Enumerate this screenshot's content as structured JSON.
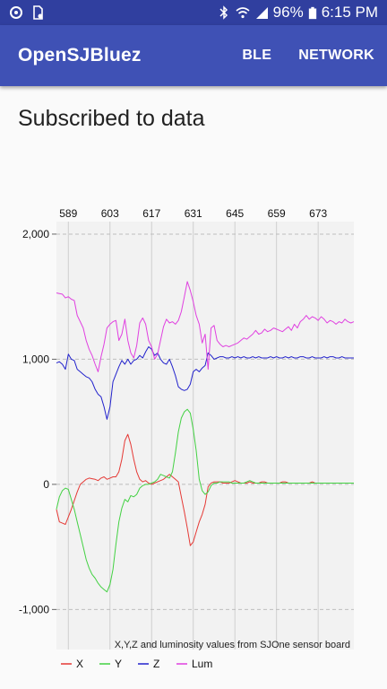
{
  "status_bar": {
    "left_icons": [
      "sync-icon",
      "sd-card-icon"
    ],
    "right_icons": [
      "bluetooth-icon",
      "wifi-icon",
      "signal-icon",
      "battery-icon"
    ],
    "battery": "96%",
    "time": "6:15 PM"
  },
  "app_bar": {
    "title": "OpenSJBluez",
    "actions": [
      "BLE",
      "NETWORK"
    ]
  },
  "main": {
    "heading": "Subscribed to data"
  },
  "colors": {
    "X": "#e53935",
    "Y": "#43d143",
    "Z": "#2222cc",
    "Lum": "#e040e0",
    "primary": "#3f51b5",
    "status": "#303f9f"
  },
  "chart_data": {
    "type": "line",
    "title": "",
    "description": "X,Y,Z and luminosity values from SJOne sensor board",
    "xlabel": "",
    "ylabel": "",
    "x_ticks": [
      589,
      603,
      617,
      631,
      645,
      659,
      673
    ],
    "xlim": [
      585,
      685
    ],
    "y_ticks": [
      -1000,
      0,
      1000,
      2000
    ],
    "y_tick_labels": [
      "-1,000",
      "0",
      "1,000",
      "2,000"
    ],
    "ylim": [
      -1320,
      2100
    ],
    "grid": true,
    "legend": "bottom-left",
    "x": [
      585,
      586,
      587,
      588,
      589,
      590,
      591,
      592,
      593,
      594,
      595,
      596,
      597,
      598,
      599,
      600,
      601,
      602,
      603,
      604,
      605,
      606,
      607,
      608,
      609,
      610,
      611,
      612,
      613,
      614,
      615,
      616,
      617,
      618,
      619,
      620,
      621,
      622,
      623,
      624,
      625,
      626,
      627,
      628,
      629,
      630,
      631,
      632,
      633,
      634,
      635,
      636,
      637,
      638,
      639,
      640,
      641,
      642,
      643,
      644,
      645,
      646,
      647,
      648,
      649,
      650,
      651,
      652,
      653,
      654,
      655,
      656,
      657,
      658,
      659,
      660,
      661,
      662,
      663,
      664,
      665,
      666,
      667,
      668,
      669,
      670,
      671,
      672,
      673,
      674,
      675,
      676,
      677,
      678,
      679,
      680,
      681,
      682,
      683,
      684,
      685
    ],
    "series": [
      {
        "name": "X",
        "values": [
          -200,
          -300,
          -310,
          -320,
          -260,
          -200,
          -130,
          -60,
          0,
          20,
          40,
          50,
          45,
          40,
          30,
          50,
          60,
          40,
          50,
          60,
          60,
          100,
          200,
          350,
          400,
          320,
          200,
          100,
          40,
          20,
          30,
          10,
          0,
          10,
          20,
          30,
          40,
          60,
          80,
          60,
          40,
          20,
          -100,
          -220,
          -350,
          -490,
          -460,
          -380,
          -300,
          -240,
          -160,
          -20,
          10,
          20,
          20,
          20,
          10,
          10,
          10,
          20,
          30,
          20,
          10,
          10,
          10,
          20,
          10,
          10,
          10,
          20,
          20,
          10,
          10,
          10,
          10,
          10,
          20,
          20,
          10,
          10,
          10,
          10,
          10,
          10,
          10,
          10,
          20,
          10,
          10,
          10,
          10,
          10,
          10,
          10,
          10,
          10,
          10,
          10,
          10,
          10,
          10
        ]
      },
      {
        "name": "Y",
        "values": [
          -200,
          -100,
          -50,
          -30,
          -40,
          -120,
          -200,
          -300,
          -400,
          -500,
          -600,
          -670,
          -720,
          -750,
          -790,
          -820,
          -840,
          -860,
          -800,
          -680,
          -480,
          -300,
          -190,
          -120,
          -140,
          -90,
          -100,
          -80,
          -30,
          -10,
          0,
          0,
          10,
          20,
          40,
          80,
          70,
          60,
          50,
          100,
          250,
          420,
          530,
          580,
          600,
          570,
          440,
          270,
          40,
          -50,
          -80,
          -60,
          -10,
          10,
          10,
          20,
          20,
          20,
          20,
          10,
          10,
          10,
          10,
          10,
          20,
          30,
          20,
          10,
          10,
          10,
          10,
          10,
          10,
          10,
          10,
          10,
          10,
          10,
          10,
          10,
          10,
          10,
          10,
          10,
          10,
          10,
          10,
          10,
          10,
          10,
          10,
          10,
          10,
          10,
          10,
          10,
          10,
          10,
          10,
          10,
          10
        ]
      },
      {
        "name": "Z",
        "values": [
          970,
          980,
          960,
          920,
          1040,
          1000,
          990,
          920,
          900,
          880,
          860,
          850,
          820,
          760,
          720,
          700,
          620,
          520,
          620,
          820,
          880,
          940,
          990,
          960,
          1000,
          960,
          990,
          1000,
          1030,
          1010,
          1060,
          1100,
          1080,
          1030,
          1050,
          1000,
          970,
          960,
          1000,
          940,
          870,
          780,
          760,
          750,
          760,
          800,
          900,
          920,
          900,
          930,
          950,
          1050,
          1030,
          1000,
          1010,
          1020,
          1020,
          1010,
          1010,
          1020,
          1010,
          1020,
          1010,
          1020,
          1010,
          1010,
          1020,
          1010,
          1020,
          1010,
          1010,
          1010,
          1020,
          1010,
          1020,
          1010,
          1010,
          1020,
          1010,
          1020,
          1010,
          1010,
          1020,
          1020,
          1010,
          1010,
          1020,
          1010,
          1010,
          1010,
          1020,
          1010,
          1020,
          1020,
          1010,
          1010,
          1020,
          1010,
          1010,
          1010,
          1010
        ]
      },
      {
        "name": "Lum",
        "values": [
          1530,
          1525,
          1520,
          1490,
          1500,
          1480,
          1470,
          1350,
          1300,
          1250,
          1150,
          1080,
          1030,
          960,
          900,
          1020,
          1120,
          1250,
          1280,
          1300,
          1310,
          1150,
          1200,
          1320,
          1150,
          1050,
          1010,
          1110,
          1290,
          1330,
          1280,
          1150,
          1100,
          1000,
          1040,
          1150,
          1260,
          1320,
          1290,
          1300,
          1280,
          1310,
          1380,
          1500,
          1620,
          1550,
          1460,
          1350,
          1280,
          1130,
          1200,
          920,
          1250,
          1270,
          1150,
          1120,
          1100,
          1110,
          1100,
          1110,
          1120,
          1130,
          1150,
          1170,
          1160,
          1180,
          1200,
          1230,
          1200,
          1210,
          1240,
          1220,
          1230,
          1250,
          1240,
          1230,
          1220,
          1240,
          1260,
          1230,
          1280,
          1250,
          1300,
          1320,
          1350,
          1320,
          1340,
          1330,
          1310,
          1340,
          1320,
          1290,
          1310,
          1300,
          1280,
          1300,
          1290,
          1320,
          1300,
          1290,
          1300
        ]
      }
    ]
  }
}
